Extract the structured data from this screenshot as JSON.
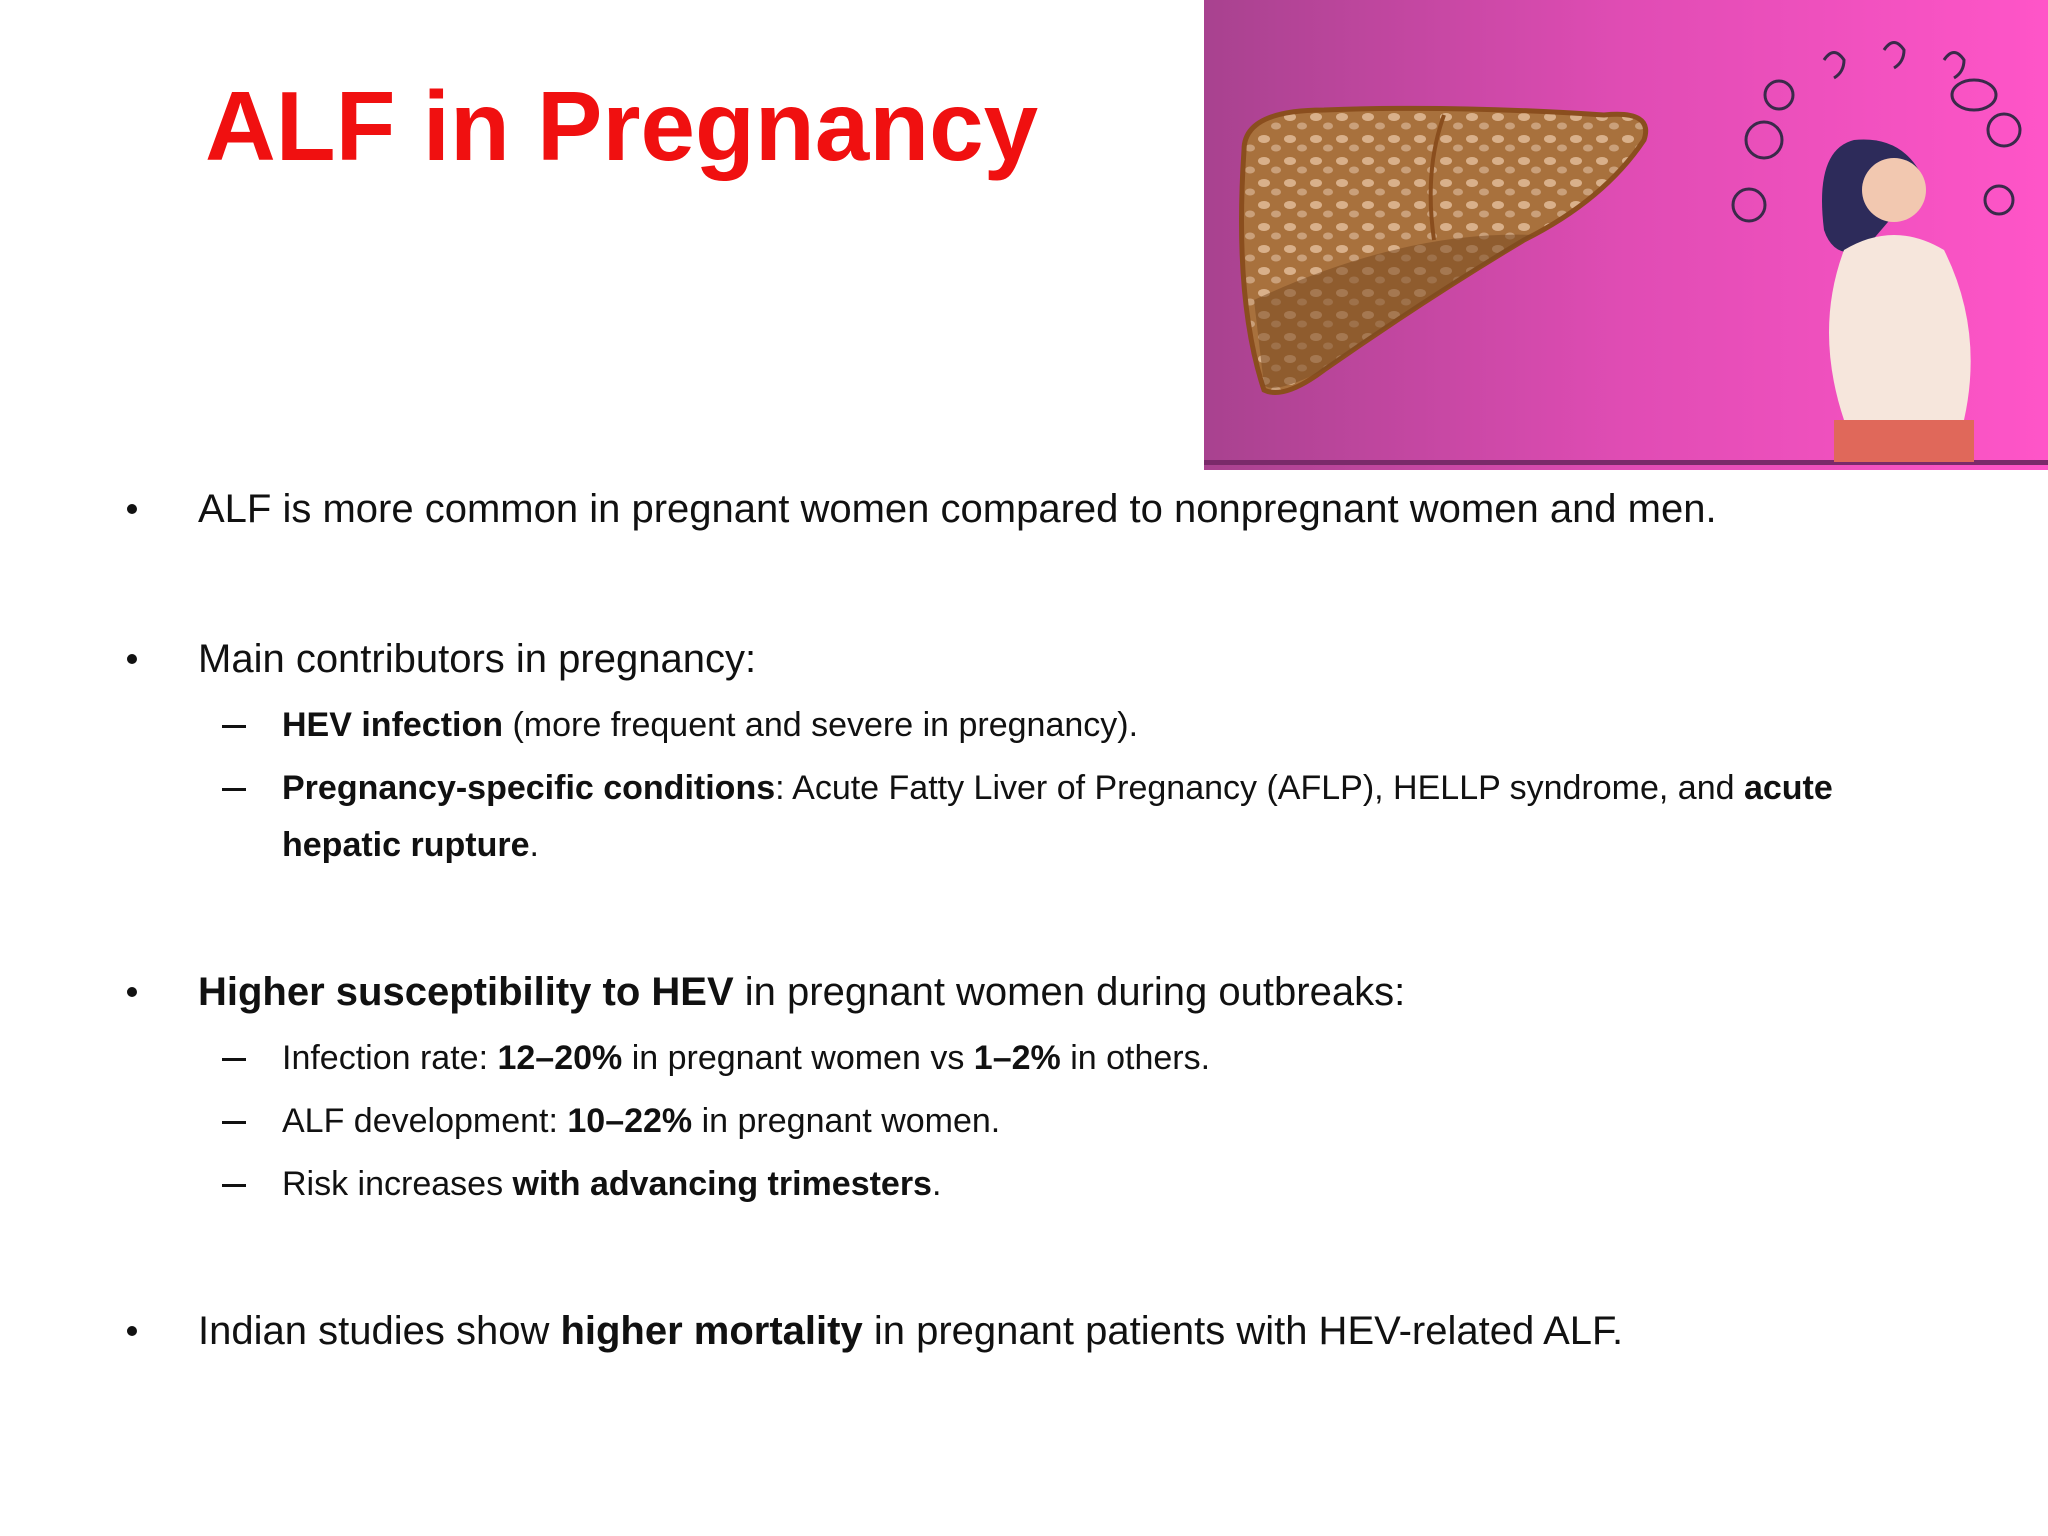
{
  "title": "ALF in Pregnancy",
  "bullets": [
    {
      "runs": [
        {
          "text": "ALF is more common in pregnant women compared to nonpregnant women and men."
        }
      ],
      "sub": []
    },
    {
      "runs": [
        {
          "text": "Main contributors in pregnancy:"
        }
      ],
      "sub": [
        [
          {
            "text": "HEV infection",
            "bold": true
          },
          {
            "text": " (more frequent and severe in pregnancy)."
          }
        ],
        [
          {
            "text": "Pregnancy-specific conditions",
            "bold": true
          },
          {
            "text": ": Acute Fatty Liver of Pregnancy (AFLP), HELLP syndrome, and "
          },
          {
            "text": "acute hepatic rupture",
            "bold": true
          },
          {
            "text": "."
          }
        ]
      ]
    },
    {
      "runs": [
        {
          "text": "Higher susceptibility to HEV",
          "bold": true
        },
        {
          "text": " in pregnant women during outbreaks:"
        }
      ],
      "sub": [
        [
          {
            "text": "Infection rate: "
          },
          {
            "text": "12–20%",
            "bold": true
          },
          {
            "text": " in pregnant women vs "
          },
          {
            "text": "1–2%",
            "bold": true
          },
          {
            "text": " in others."
          }
        ],
        [
          {
            "text": "ALF development: "
          },
          {
            "text": "10–22%",
            "bold": true
          },
          {
            "text": " in pregnant women."
          }
        ],
        [
          {
            "text": "Risk increases "
          },
          {
            "text": "with advancing trimesters",
            "bold": true
          },
          {
            "text": "."
          }
        ]
      ]
    },
    {
      "runs": [
        {
          "text": "Indian studies show "
        },
        {
          "text": "higher mortality",
          "bold": true
        },
        {
          "text": " in pregnant patients with HEV-related ALF."
        }
      ],
      "sub": []
    }
  ]
}
